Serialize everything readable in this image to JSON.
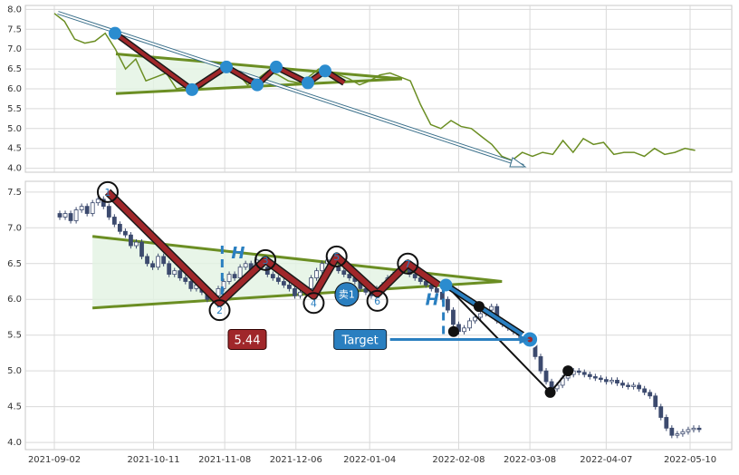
{
  "chart_data": [
    {
      "type": "line",
      "panel": "overview",
      "ylim": [
        3.9,
        8.1
      ],
      "yticks": [
        "8.0",
        "7.5",
        "7.0",
        "6.5",
        "6.0",
        "5.5",
        "5.0",
        "4.5",
        "4.0"
      ],
      "grid": true,
      "series": [
        {
          "color": "#6b8e23",
          "x": [
            "2021-09-02",
            "2021-09-06",
            "2021-09-10",
            "2021-09-14",
            "2021-09-18",
            "2021-09-22",
            "2021-09-26",
            "2021-09-30",
            "2021-10-04",
            "2021-10-08",
            "2021-10-12",
            "2021-10-16",
            "2021-10-20",
            "2021-10-24",
            "2021-10-28",
            "2021-11-01",
            "2021-11-05",
            "2021-11-09",
            "2021-11-13",
            "2021-11-17",
            "2021-11-21",
            "2021-11-25",
            "2021-11-29",
            "2021-12-03",
            "2021-12-07",
            "2021-12-11",
            "2021-12-15",
            "2021-12-19",
            "2021-12-23",
            "2021-12-27",
            "2021-12-31",
            "2022-01-04",
            "2022-01-08",
            "2022-01-12",
            "2022-01-16",
            "2022-01-20",
            "2022-01-24",
            "2022-01-28",
            "2022-02-01",
            "2022-02-05",
            "2022-02-09",
            "2022-02-13",
            "2022-02-17",
            "2022-02-21",
            "2022-02-25",
            "2022-03-01",
            "2022-03-05",
            "2022-03-09",
            "2022-03-13",
            "2022-03-17",
            "2022-03-21",
            "2022-03-25",
            "2022-03-29",
            "2022-04-02",
            "2022-04-06",
            "2022-04-10",
            "2022-04-14",
            "2022-04-18",
            "2022-04-22",
            "2022-04-26",
            "2022-04-30",
            "2022-05-04",
            "2022-05-08",
            "2022-05-12"
          ],
          "values": [
            7.9,
            7.7,
            7.25,
            7.15,
            7.2,
            7.4,
            7.0,
            6.5,
            6.75,
            6.2,
            6.3,
            6.4,
            6.0,
            6.05,
            5.95,
            6.15,
            6.35,
            6.5,
            6.4,
            6.1,
            6.25,
            6.45,
            6.35,
            6.2,
            6.15,
            6.3,
            6.5,
            6.45,
            6.35,
            6.25,
            6.1,
            6.2,
            6.35,
            6.4,
            6.3,
            6.2,
            5.6,
            5.1,
            5.0,
            5.2,
            5.05,
            5.0,
            4.8,
            4.6,
            4.3,
            4.2,
            4.4,
            4.3,
            4.4,
            4.35,
            4.7,
            4.4,
            4.75,
            4.6,
            4.65,
            4.35,
            4.4,
            4.4,
            4.3,
            4.5,
            4.35,
            4.4,
            4.5,
            4.45
          ]
        }
      ]
    },
    {
      "type": "candlestick",
      "panel": "main",
      "ylim": [
        3.9,
        7.65
      ],
      "yticks": [
        "7.5",
        "7.0",
        "6.5",
        "6.0",
        "5.5",
        "5.0",
        "4.5",
        "4.0"
      ],
      "xticks": [
        "2021-09-02",
        "2021-10-11",
        "2021-11-08",
        "2021-12-06",
        "2022-01-04",
        "2022-02-08",
        "2022-03-08",
        "2022-04-07",
        "2022-05-10"
      ],
      "grid": true,
      "closes": [
        7.15,
        7.2,
        7.1,
        7.25,
        7.3,
        7.2,
        7.35,
        7.4,
        7.3,
        7.15,
        7.05,
        6.95,
        6.9,
        6.75,
        6.8,
        6.6,
        6.5,
        6.45,
        6.6,
        6.5,
        6.35,
        6.4,
        6.3,
        6.25,
        6.15,
        6.2,
        6.1,
        6.0,
        6.05,
        6.15,
        6.25,
        6.35,
        6.3,
        6.45,
        6.5,
        6.4,
        6.55,
        6.45,
        6.35,
        6.3,
        6.25,
        6.2,
        6.15,
        6.05,
        6.1,
        6.15,
        6.3,
        6.4,
        6.5,
        6.55,
        6.45,
        6.4,
        6.35,
        6.3,
        6.25,
        6.15,
        6.1,
        6.05,
        6.15,
        6.2,
        6.3,
        6.35,
        6.4,
        6.45,
        6.35,
        6.3,
        6.25,
        6.2,
        6.15,
        6.1,
        6.0,
        5.85,
        5.65,
        5.55,
        5.6,
        5.7,
        5.75,
        5.8,
        5.85,
        5.9,
        5.7,
        5.65,
        5.6,
        5.55,
        5.5,
        5.45,
        5.4,
        5.2,
        5.0,
        4.85,
        4.75,
        4.8,
        4.9,
        4.95,
        5.0,
        4.98,
        4.95,
        4.92,
        4.9,
        4.88,
        4.85,
        4.87,
        4.83,
        4.8,
        4.78,
        4.8,
        4.75,
        4.7,
        4.65,
        4.5,
        4.35,
        4.2,
        4.1,
        4.12,
        4.15,
        4.18,
        4.2,
        4.18
      ],
      "zigzag": [
        {
          "date": "2021-09-23",
          "price": 7.5,
          "label": "1"
        },
        {
          "date": "2021-11-06",
          "price": 5.95,
          "label": "2"
        },
        {
          "date": "2021-11-24",
          "price": 6.55,
          "label": "3"
        },
        {
          "date": "2021-12-13",
          "price": 6.05,
          "label": "4"
        },
        {
          "date": "2021-12-22",
          "price": 6.6,
          "label": "5"
        },
        {
          "date": "2022-01-07",
          "price": 6.08,
          "label": "6"
        },
        {
          "date": "2022-01-19",
          "price": 6.5,
          "label": "7"
        },
        {
          "date": "2022-01-31",
          "price": 6.2,
          "label": ""
        }
      ],
      "triangle_upper": [
        {
          "date": "2021-09-17",
          "price": 6.88
        },
        {
          "date": "2022-02-25",
          "price": 6.25
        }
      ],
      "triangle_lower": [
        {
          "date": "2021-09-17",
          "price": 5.88
        },
        {
          "date": "2022-02-25",
          "price": 6.25
        }
      ],
      "breakout_path": [
        {
          "date": "2022-02-03",
          "price": 6.2
        },
        {
          "date": "2022-03-08",
          "price": 5.44
        }
      ],
      "decline_path": [
        {
          "date": "2022-02-03",
          "price": 6.2
        },
        {
          "date": "2022-03-16",
          "price": 4.7
        },
        {
          "date": "2022-03-23",
          "price": 5.0
        }
      ],
      "markers": [
        {
          "date": "2022-02-06",
          "price": 5.55
        },
        {
          "date": "2022-02-16",
          "price": 5.9
        },
        {
          "date": "2022-03-16",
          "price": 4.7
        },
        {
          "date": "2022-03-23",
          "price": 5.0
        }
      ],
      "target_point": {
        "date": "2022-03-08",
        "price": 5.44
      },
      "sell_marker": {
        "date": "2021-12-26",
        "price": 6.07,
        "label": "卖1"
      },
      "h_marks": [
        {
          "date": "2021-11-07",
          "from": 5.95,
          "to": 6.75,
          "label": "H"
        },
        {
          "date": "2022-02-02",
          "from": 5.5,
          "to": 6.2,
          "label": "H"
        }
      ],
      "target_line": {
        "from_date": "2022-01-12",
        "to_date": "2022-03-06",
        "price": 5.44
      },
      "price_label": "5.44",
      "target_label": "Target"
    }
  ],
  "colors": {
    "trend_line": "#6b8e23",
    "zigzag_outer": "#1a1a1a",
    "zigzag_inner": "#a0272a",
    "node": "#2b8ccf",
    "triangle_fill": "#e2f2e2",
    "target_blue": "#2a7fc0",
    "price_red": "#a0272a",
    "candle": "#3c4a6e",
    "grid": "#d9d9d9"
  }
}
